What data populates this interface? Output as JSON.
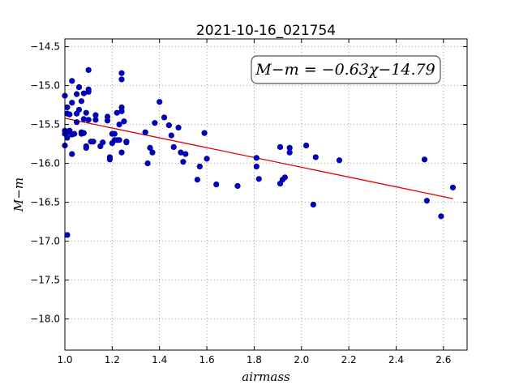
{
  "chart_data": {
    "type": "scatter",
    "title": "2021-10-16_021754",
    "xlabel": "airmass",
    "ylabel": "M−m",
    "xlim": [
      1.0,
      2.7
    ],
    "ylim": [
      -14.4,
      -18.4
    ],
    "y_inverted": true,
    "grid": true,
    "x_ticks": [
      1.0,
      1.2,
      1.4,
      1.6,
      1.8,
      2.0,
      2.2,
      2.4,
      2.6
    ],
    "x_tick_labels": [
      "1.0",
      "1.2",
      "1.4",
      "1.6",
      "1.8",
      "2.0",
      "2.2",
      "2.4",
      "2.6"
    ],
    "y_ticks": [
      -14.5,
      -15.0,
      -15.5,
      -16.0,
      -16.5,
      -17.0,
      -17.5,
      -18.0
    ],
    "y_tick_labels": [
      "−14.5",
      "−15.0",
      "−15.5",
      "−16.0",
      "−16.5",
      "−17.0",
      "−17.5",
      "−18.0"
    ],
    "annotation": "M−m = −0.63χ−14.79",
    "fit": {
      "slope": -0.63,
      "intercept": -14.79,
      "x_range": [
        1.0,
        2.64
      ]
    },
    "series": [
      {
        "points": [
          [
            1.0,
            -15.13
          ],
          [
            1.0,
            -15.58
          ],
          [
            1.0,
            -15.62
          ],
          [
            1.0,
            -15.77
          ],
          [
            1.01,
            -15.28
          ],
          [
            1.01,
            -15.36
          ],
          [
            1.01,
            -15.6
          ],
          [
            1.01,
            -15.67
          ],
          [
            1.02,
            -15.37
          ],
          [
            1.02,
            -15.58
          ],
          [
            1.03,
            -14.94
          ],
          [
            1.03,
            -15.22
          ],
          [
            1.03,
            -15.63
          ],
          [
            1.03,
            -15.88
          ],
          [
            1.04,
            -15.62
          ],
          [
            1.05,
            -15.11
          ],
          [
            1.05,
            -15.47
          ],
          [
            1.05,
            -15.36
          ],
          [
            1.06,
            -15.02
          ],
          [
            1.06,
            -15.31
          ],
          [
            1.07,
            -15.2
          ],
          [
            1.07,
            -15.6
          ],
          [
            1.07,
            -15.62
          ],
          [
            1.08,
            -15.1
          ],
          [
            1.08,
            -15.43
          ],
          [
            1.08,
            -15.61
          ],
          [
            1.09,
            -15.35
          ],
          [
            1.09,
            -15.78
          ],
          [
            1.09,
            -15.8
          ],
          [
            1.1,
            -15.08
          ],
          [
            1.1,
            -15.44
          ],
          [
            1.1,
            -14.8
          ],
          [
            1.1,
            -15.05
          ],
          [
            1.11,
            -15.72
          ],
          [
            1.12,
            -15.72
          ],
          [
            1.13,
            -15.38
          ],
          [
            1.13,
            -15.44
          ],
          [
            1.15,
            -15.78
          ],
          [
            1.16,
            -15.73
          ],
          [
            1.18,
            -15.4
          ],
          [
            1.18,
            -15.45
          ],
          [
            1.19,
            -15.92
          ],
          [
            1.19,
            -15.95
          ],
          [
            1.2,
            -15.62
          ],
          [
            1.2,
            -15.74
          ],
          [
            1.21,
            -15.62
          ],
          [
            1.21,
            -15.7
          ],
          [
            1.22,
            -15.35
          ],
          [
            1.22,
            -15.7
          ],
          [
            1.23,
            -15.5
          ],
          [
            1.23,
            -15.7
          ],
          [
            1.24,
            -14.84
          ],
          [
            1.24,
            -14.92
          ],
          [
            1.24,
            -15.28
          ],
          [
            1.24,
            -15.33
          ],
          [
            1.24,
            -15.86
          ],
          [
            1.25,
            -15.46
          ],
          [
            1.26,
            -15.72
          ],
          [
            1.26,
            -15.73
          ],
          [
            1.34,
            -15.6
          ],
          [
            1.35,
            -16.0
          ],
          [
            1.36,
            -15.8
          ],
          [
            1.37,
            -15.86
          ],
          [
            1.38,
            -15.48
          ],
          [
            1.4,
            -15.21
          ],
          [
            1.42,
            -15.41
          ],
          [
            1.44,
            -15.51
          ],
          [
            1.45,
            -15.64
          ],
          [
            1.46,
            -15.79
          ],
          [
            1.48,
            -15.54
          ],
          [
            1.49,
            -15.86
          ],
          [
            1.5,
            -15.98
          ],
          [
            1.51,
            -15.88
          ],
          [
            1.56,
            -16.21
          ],
          [
            1.57,
            -16.04
          ],
          [
            1.59,
            -15.61
          ],
          [
            1.6,
            -15.94
          ],
          [
            1.64,
            -16.27
          ],
          [
            1.73,
            -16.29
          ],
          [
            1.81,
            -15.93
          ],
          [
            1.81,
            -16.04
          ],
          [
            1.82,
            -16.2
          ],
          [
            1.91,
            -15.79
          ],
          [
            1.91,
            -16.26
          ],
          [
            1.92,
            -16.21
          ],
          [
            1.93,
            -16.18
          ],
          [
            1.95,
            -15.8
          ],
          [
            1.95,
            -15.86
          ],
          [
            2.02,
            -15.77
          ],
          [
            2.05,
            -16.53
          ],
          [
            2.06,
            -15.92
          ],
          [
            2.16,
            -15.96
          ],
          [
            2.52,
            -15.95
          ],
          [
            2.53,
            -16.48
          ],
          [
            2.59,
            -16.68
          ],
          [
            2.64,
            -16.31
          ],
          [
            1.01,
            -16.92
          ]
        ]
      }
    ]
  },
  "colors": {
    "marker_fill": "#0000cc",
    "marker_edge": "#000066",
    "fit_line": "#dd0000",
    "grid": "#888888",
    "frame": "#000000",
    "annotation_box_edge": "#555555"
  }
}
